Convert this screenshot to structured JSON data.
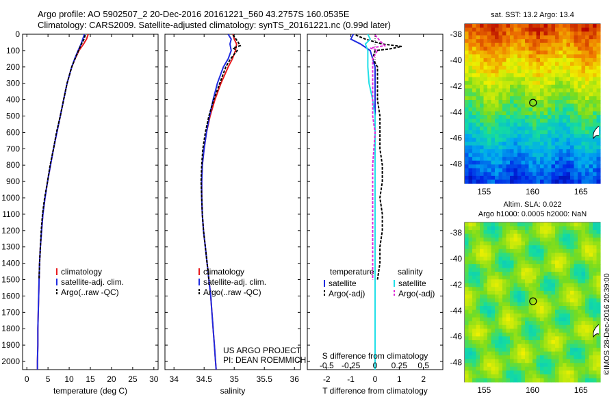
{
  "header": {
    "line1": "Argo profile: AO 5902507_2 20-Dec-2016 20161221_560 43.2757S 160.0535E",
    "line2": "Climatology: CARS2009. Satellite-adjusted climatology: synTS_20161221.nc (0.99d later)"
  },
  "colors": {
    "climatology": "#e8191c",
    "satellite": "#1f2be0",
    "argo": "#000000",
    "sal_satellite": "#22e0e8",
    "sal_argo": "#e02ad8"
  },
  "chart_data": [
    {
      "type": "line",
      "panel": "temperature",
      "xlabel": "temperature (deg C)",
      "ylabel": "",
      "xlim": [
        -1,
        31
      ],
      "ylim": [
        2050,
        0
      ],
      "xticks": [
        0,
        5,
        10,
        15,
        20,
        25,
        30
      ],
      "yticks": [
        0,
        100,
        200,
        300,
        400,
        500,
        600,
        700,
        800,
        900,
        1000,
        1100,
        1200,
        1300,
        1400,
        1500,
        1600,
        1700,
        1800,
        1900,
        2000
      ],
      "legend": [
        "climatology",
        "satellite-adj. clim.",
        "Argo(..raw -QC)"
      ],
      "series": [
        {
          "name": "climatology",
          "color": "#e8191c",
          "depth": [
            0,
            30,
            60,
            100,
            150,
            200,
            300,
            400,
            500,
            600,
            700,
            800,
            900,
            1000,
            1100,
            1200,
            1300,
            1400,
            1500,
            1600,
            1700,
            1800,
            1900,
            2000,
            2050
          ],
          "values": [
            14.5,
            14.1,
            13.4,
            12.3,
            11.4,
            10.6,
            9.5,
            8.7,
            7.9,
            7.1,
            6.3,
            5.6,
            4.9,
            4.3,
            3.8,
            3.5,
            3.2,
            3.0,
            2.9,
            2.8,
            2.7,
            2.6,
            2.6,
            2.5,
            2.5
          ]
        },
        {
          "name": "satellite-adj. clim.",
          "color": "#1f2be0",
          "depth": [
            0,
            30,
            60,
            100,
            150,
            200,
            300,
            400,
            500,
            600,
            700,
            800,
            900,
            1000,
            1100,
            1200,
            1300,
            1400,
            1500,
            1600,
            1700,
            1800,
            1900,
            2000,
            2050
          ],
          "values": [
            13.6,
            13.2,
            12.8,
            12.1,
            11.3,
            10.6,
            9.5,
            8.7,
            7.9,
            7.1,
            6.3,
            5.6,
            4.9,
            4.3,
            3.8,
            3.5,
            3.2,
            3.0,
            2.9,
            2.8,
            2.7,
            2.6,
            2.6,
            2.5,
            2.5
          ]
        },
        {
          "name": "Argo(..raw -QC)",
          "color": "#000000",
          "depth": [
            5,
            30,
            60,
            100,
            150,
            200,
            300,
            400,
            500,
            600,
            700,
            800,
            900,
            1000,
            1100,
            1200,
            1300,
            1400,
            1500
          ],
          "values": [
            13.8,
            13.5,
            12.9,
            12.2,
            11.4,
            10.6,
            9.5,
            8.7,
            7.9,
            7.0,
            6.3,
            5.5,
            4.9,
            4.2,
            3.7,
            3.4,
            3.2,
            3.0,
            2.9
          ]
        }
      ]
    },
    {
      "type": "line",
      "panel": "salinity",
      "xlabel": "salinity",
      "xlim": [
        33.85,
        36.1
      ],
      "ylim": [
        2050,
        0
      ],
      "xticks": [
        34,
        34.5,
        35,
        35.5,
        36
      ],
      "xticklabels": [
        "34",
        "34.5",
        "35",
        "35.5",
        "36"
      ],
      "legend": [
        "climatology",
        "satellite-adj. clim.",
        "Argo(..raw -QC)"
      ],
      "annotation": [
        "US ARGO PROJECT",
        "PI: DEAN ROEMMICH"
      ],
      "series": [
        {
          "name": "climatology",
          "color": "#e8191c",
          "depth": [
            0,
            30,
            60,
            100,
            150,
            200,
            300,
            400,
            500,
            600,
            700,
            800,
            900,
            1000,
            1100,
            1200,
            1300,
            1400,
            1500,
            1600,
            1700,
            1800,
            1900,
            2000,
            2050
          ],
          "values": [
            34.98,
            35.0,
            35.04,
            35.02,
            34.97,
            34.9,
            34.78,
            34.68,
            34.6,
            34.54,
            34.5,
            34.47,
            34.46,
            34.46,
            34.47,
            34.49,
            34.52,
            34.55,
            34.58,
            34.61,
            34.63,
            34.65,
            34.67,
            34.69,
            34.7
          ]
        },
        {
          "name": "satellite-adj. clim.",
          "color": "#1f2be0",
          "depth": [
            0,
            30,
            60,
            100,
            150,
            200,
            300,
            400,
            500,
            600,
            700,
            800,
            900,
            1000,
            1100,
            1200,
            1300,
            1400,
            1500,
            1600,
            1700,
            1800,
            1900,
            2000,
            2050
          ],
          "values": [
            34.9,
            34.95,
            34.93,
            34.95,
            34.9,
            34.82,
            34.72,
            34.65,
            34.59,
            34.54,
            34.5,
            34.47,
            34.46,
            34.46,
            34.47,
            34.49,
            34.52,
            34.55,
            34.58,
            34.61,
            34.63,
            34.65,
            34.67,
            34.69,
            34.7
          ]
        },
        {
          "name": "Argo(..raw -QC)",
          "color": "#000000",
          "depth": [
            5,
            40,
            70,
            85,
            100,
            150,
            200,
            300,
            400,
            500,
            600,
            700,
            800,
            900,
            1000,
            1100,
            1200,
            1300,
            1400,
            1500
          ],
          "values": [
            34.98,
            35.05,
            35.1,
            34.98,
            35.05,
            34.94,
            34.86,
            34.76,
            34.66,
            34.58,
            34.52,
            34.48,
            34.46,
            34.45,
            34.46,
            34.47,
            34.49,
            34.52,
            34.55,
            34.58
          ]
        }
      ]
    },
    {
      "type": "line",
      "panel": "differences",
      "xlabel": "T difference from climatology",
      "xlabel_top": "S difference from climatology",
      "xlim": [
        -2.8,
        2.8
      ],
      "ylim": [
        2050,
        0
      ],
      "xticks": [
        -2,
        -1,
        0,
        1,
        2
      ],
      "xticklabels": [
        "-2",
        "-1",
        "0",
        "1",
        "2"
      ],
      "s_xticklabels": [
        "-0.5",
        "-0.25",
        "0",
        "0.25",
        "0.5"
      ],
      "legend_titles": [
        "temperature",
        "salinity"
      ],
      "legend": [
        "satellite",
        "Argo(-adj)",
        "satellite",
        "Argo(-adj)"
      ],
      "series": [
        {
          "name": "satellite",
          "color": "#1f2be0",
          "depth": [
            0,
            30,
            60,
            100,
            150,
            200,
            300,
            400,
            500,
            2050
          ],
          "values": [
            -0.9,
            -1.0,
            -0.6,
            -0.2,
            -0.1,
            0.0,
            0.0,
            0.0,
            0.0,
            0.0
          ]
        },
        {
          "name": "Argo(-adj)",
          "color": "#000000",
          "depth": [
            5,
            30,
            60,
            75,
            90,
            100,
            150,
            200,
            300,
            400,
            500,
            600,
            700,
            800,
            900,
            1000,
            1100,
            1200,
            1300,
            1400,
            1500
          ],
          "values": [
            -0.8,
            -0.4,
            0.3,
            1.1,
            0.6,
            0.0,
            -0.1,
            0.1,
            0.1,
            0.1,
            0.2,
            0.2,
            0.2,
            0.3,
            0.3,
            0.2,
            0.3,
            0.3,
            0.2,
            0.2,
            0.1
          ]
        },
        {
          "name": "satellite",
          "color": "#22e0e8",
          "depth": [
            0,
            30,
            60,
            100,
            150,
            200,
            300,
            400,
            500,
            2050
          ],
          "values": [
            -0.3,
            -0.2,
            -0.4,
            -0.3,
            -0.3,
            -0.3,
            -0.25,
            -0.1,
            0.0,
            0.0
          ]
        },
        {
          "name": "Argo(-adj)",
          "color": "#e02ad8",
          "depth": [
            5,
            40,
            70,
            85,
            100,
            150,
            200,
            300,
            400,
            500,
            600,
            800,
            1000,
            1200,
            1400,
            1500
          ],
          "values": [
            0.0,
            0.2,
            0.4,
            -0.2,
            0.1,
            -0.1,
            -0.1,
            -0.1,
            -0.1,
            -0.1,
            0.0,
            -0.1,
            -0.1,
            -0.1,
            -0.1,
            -0.1
          ]
        }
      ]
    },
    {
      "type": "heatmap",
      "panel": "sst-map",
      "title": "sat. SST: 13.2  Argo: 13.4",
      "xlim": [
        153,
        167
      ],
      "ylim": [
        -49.5,
        -37.2
      ],
      "xticks": [
        155,
        160,
        165
      ],
      "yticks": [
        -48,
        -46,
        -44,
        -42,
        -40,
        -38
      ],
      "float_position": {
        "lon": 160.0535,
        "lat": -43.2757
      }
    },
    {
      "type": "heatmap",
      "panel": "sla-map",
      "title_line1": "Altim. SLA: 0.022",
      "title_line2": "Argo h1000: 0.0005 h2000: NaN",
      "xlim": [
        153,
        167
      ],
      "ylim": [
        -49.5,
        -37.2
      ],
      "xticks": [
        155,
        160,
        165
      ],
      "yticks": [
        -48,
        -46,
        -44,
        -42,
        -40,
        -38
      ],
      "float_position": {
        "lon": 160.0535,
        "lat": -43.2757
      }
    }
  ],
  "credit": "©IMOS 28-Dec-2016 20:39:00"
}
